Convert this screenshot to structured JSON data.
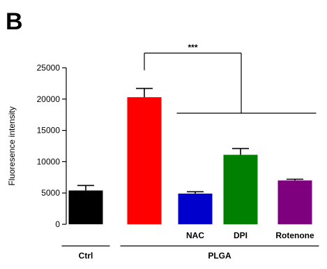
{
  "panel_label": "B",
  "chart_data": {
    "type": "bar",
    "ylabel": "Fluoresence intensity",
    "xlabel": "",
    "ylim": [
      0,
      25000
    ],
    "yticks": [
      0,
      5000,
      10000,
      15000,
      20000,
      25000
    ],
    "ytick_labels": [
      "0",
      "5000",
      "10000",
      "15000",
      "20000",
      "25000"
    ],
    "categories": [
      "",
      "",
      "NAC",
      "DPI",
      "Rotenone"
    ],
    "values": [
      5400,
      20300,
      4900,
      11100,
      7000
    ],
    "errors": [
      800,
      1400,
      300,
      1000,
      200
    ],
    "colors": [
      "#000000",
      "#ff0000",
      "#0000cc",
      "#008000",
      "#7f007f"
    ],
    "groups": [
      {
        "label": "Ctrl",
        "members": [
          0
        ]
      },
      {
        "label": "PLGA",
        "members": [
          1,
          2,
          3,
          4
        ]
      }
    ],
    "significance": {
      "label": "***",
      "from": 1,
      "to_span": [
        2,
        4
      ]
    },
    "grid": false,
    "legend": "none"
  }
}
